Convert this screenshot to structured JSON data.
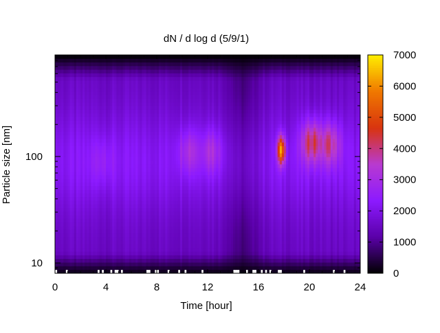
{
  "chart_data": {
    "type": "heatmap",
    "title": "dN / d log d (5/9/1)",
    "xlabel": "Time [hour]",
    "ylabel": "Particle size [nm]",
    "x_range": [
      0,
      24
    ],
    "y_range_nm": [
      8,
      900
    ],
    "y_scale": "log",
    "x_ticks": [
      0,
      4,
      8,
      12,
      16,
      20,
      24
    ],
    "y_ticks": [
      10,
      100
    ],
    "colorbar": {
      "range": [
        0,
        7000
      ],
      "ticks": [
        0,
        1000,
        2000,
        3000,
        4000,
        5000,
        6000,
        7000
      ],
      "colormap": [
        "#000000",
        "#5a00a8",
        "#8c1aff",
        "#b83ad0",
        "#d8340f",
        "#f07800",
        "#ffee00"
      ]
    },
    "features": [
      {
        "time_h": 3.7,
        "size_nm": 90,
        "value": 2700
      },
      {
        "time_h": 10.6,
        "size_nm": 110,
        "value": 3300
      },
      {
        "time_h": 12.2,
        "size_nm": 110,
        "value": 3300
      },
      {
        "time_h": 17.8,
        "size_nm": 115,
        "value": 6000
      },
      {
        "time_h": 20.3,
        "size_nm": 135,
        "value": 4400
      },
      {
        "time_h": 21.5,
        "size_nm": 130,
        "value": 4000
      }
    ]
  }
}
